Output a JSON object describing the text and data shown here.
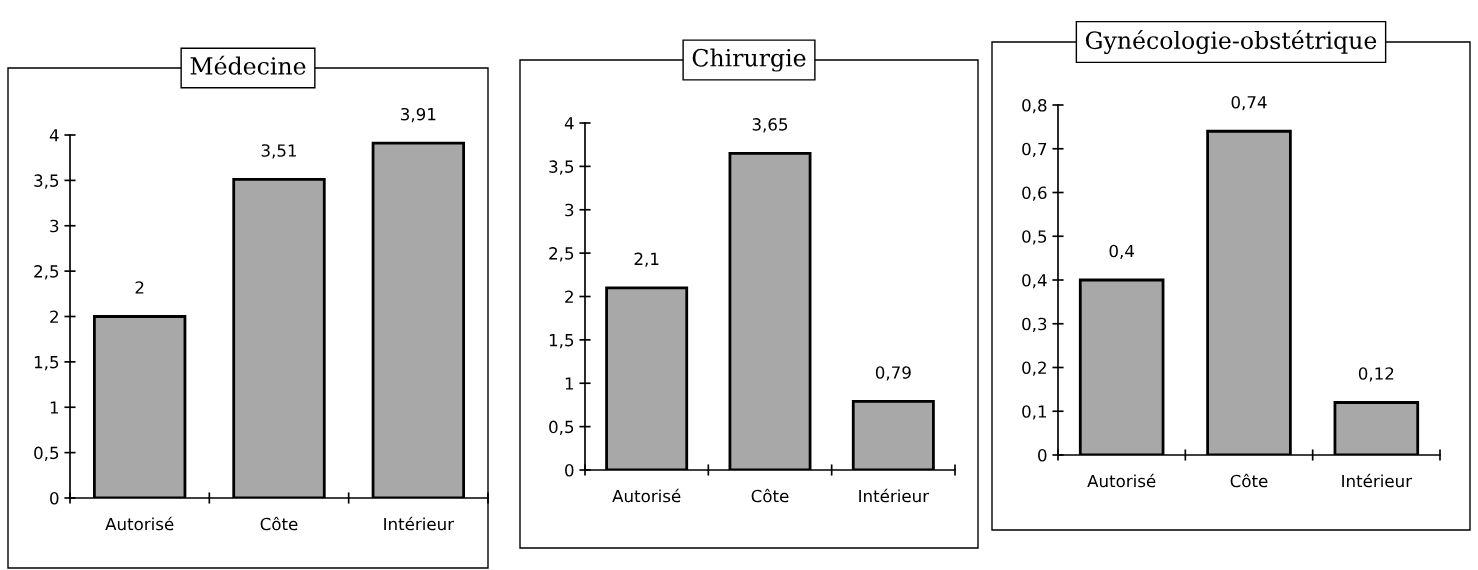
{
  "chart_data": [
    {
      "type": "bar",
      "title": "Médecine",
      "categories": [
        "Autorisé",
        "Côte",
        "Intérieur"
      ],
      "values": [
        2,
        3.51,
        3.91
      ],
      "value_labels": [
        "2",
        "3,51",
        "3,91"
      ],
      "color": "#a8a8a8",
      "ylim": [
        0,
        4
      ],
      "yticks": [
        0,
        {
          "value": 0.5,
          "label": "0,5"
        },
        1,
        {
          "value": 1.5,
          "label": "1,5"
        },
        2,
        {
          "value": 2.5,
          "label": "2,5"
        },
        3,
        {
          "value": 3.5,
          "label": "3,5"
        },
        4
      ],
      "grid": false,
      "legend": false
    },
    {
      "type": "bar",
      "title": "Chirurgie",
      "categories": [
        "Autorisé",
        "Côte",
        "Intérieur"
      ],
      "values": [
        2.1,
        3.65,
        0.79
      ],
      "value_labels": [
        "2,1",
        "3,65",
        "0,79"
      ],
      "color": "#a8a8a8",
      "ylim": [
        0,
        4
      ],
      "yticks": [
        0,
        {
          "value": 0.5,
          "label": "0,5"
        },
        1,
        {
          "value": 1.5,
          "label": "1,5"
        },
        2,
        {
          "value": 2.5,
          "label": "2,5"
        },
        3,
        {
          "value": 3.5,
          "label": "3,5"
        },
        4
      ],
      "grid": false,
      "legend": false
    },
    {
      "type": "bar",
      "title": "Gynécologie-obstétrique",
      "categories": [
        "Autorisé",
        "Côte",
        "Intérieur"
      ],
      "values": [
        0.4,
        0.74,
        0.12
      ],
      "value_labels": [
        "0,4",
        "0,74",
        "0,12"
      ],
      "color": "#a8a8a8",
      "ylim": [
        0,
        0.8
      ],
      "yticks": [
        0,
        {
          "value": 0.1,
          "label": "0,1"
        },
        {
          "value": 0.2,
          "label": "0,2"
        },
        {
          "value": 0.3,
          "label": "0,3"
        },
        {
          "value": 0.4,
          "label": "0,4"
        },
        {
          "value": 0.5,
          "label": "0,5"
        },
        {
          "value": 0.6,
          "label": "0,6"
        },
        {
          "value": 0.7,
          "label": "0,7"
        },
        {
          "value": 0.8,
          "label": "0,8"
        }
      ],
      "grid": false,
      "legend": false
    }
  ]
}
